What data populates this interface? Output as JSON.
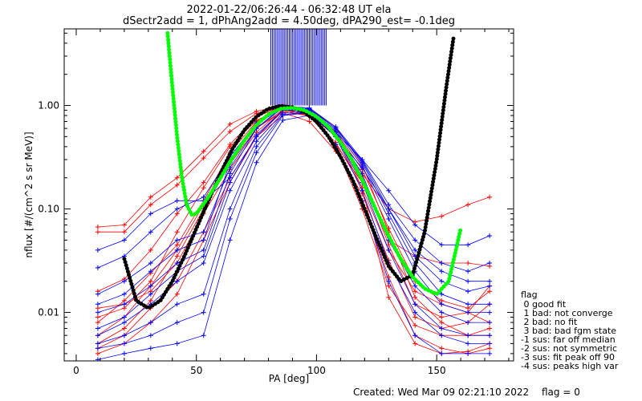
{
  "header": {
    "title_line1": "2022-01-22/06:26:44 - 06:32:48 UT ela",
    "title_line2": "dSectr2add = 1, dPhAng2add = 4.50deg, dPA290_est=  -0.1deg"
  },
  "footer": {
    "created": "Created: Wed Mar 09 02:21:10 2022",
    "flag": "flag = 0"
  },
  "legend": {
    "title": "flag",
    "items": [
      " 0 good fit",
      " 1 bad: not converge",
      " 2 bad: no fit",
      " 3 bad: bad fgm state",
      "-1 sus: far off median",
      "-2 sus: not symmetric",
      "-3 sus: fit peak off 90",
      "-4 sus: peaks high var"
    ]
  },
  "colors": {
    "red_spectra": "#ff0000",
    "blue_spectra": "#0000ff",
    "green_fit": "#00ff00",
    "black_fit": "#000000",
    "axes": "#000000"
  },
  "chart_data": {
    "type": "line",
    "xlabel": "PA [deg]",
    "ylabel": "nflux [#/(cm^2 s sr MeV)]",
    "xlim": [
      -5,
      182
    ],
    "ylim": [
      0.0034,
      5.5
    ],
    "yscale": "log",
    "x_ticks": [
      0,
      50,
      100,
      150
    ],
    "y_ticks": [
      {
        "value": 0.01,
        "label": "0.01"
      },
      {
        "value": 0.1,
        "label": "0.10"
      },
      {
        "value": 1.0,
        "label": "1.00"
      }
    ],
    "grid": false,
    "series": [
      {
        "color": "#ff0000",
        "style": "lines+plus",
        "pa": [
          9,
          20,
          31,
          42,
          53,
          64,
          75,
          86,
          97,
          108,
          119,
          130,
          141,
          152,
          163,
          172
        ],
        "curves": [
          [
            0.067,
            0.07,
            0.13,
            0.2,
            0.36,
            0.66,
            0.88,
            1.0,
            0.82,
            0.5,
            0.22,
            0.1,
            0.075,
            0.085,
            0.11,
            0.13
          ],
          [
            0.06,
            0.06,
            0.11,
            0.17,
            0.31,
            0.56,
            0.84,
            0.96,
            0.78,
            0.42,
            0.18,
            0.05,
            0.035,
            0.03,
            0.03,
            0.028
          ],
          [
            0.016,
            0.021,
            0.04,
            0.09,
            0.18,
            0.42,
            0.78,
            0.98,
            0.86,
            0.5,
            0.21,
            0.045,
            0.012,
            0.009,
            0.01,
            0.018
          ],
          [
            0.006,
            0.009,
            0.018,
            0.04,
            0.11,
            0.3,
            0.62,
            0.85,
            0.7,
            0.36,
            0.14,
            0.032,
            0.009,
            0.007,
            0.008,
            0.012
          ],
          [
            0.011,
            0.012,
            0.016,
            0.03,
            0.09,
            0.24,
            0.55,
            0.92,
            0.93,
            0.62,
            0.27,
            0.06,
            0.014,
            0.008,
            0.006,
            0.006
          ],
          [
            0.004,
            0.005,
            0.008,
            0.015,
            0.05,
            0.18,
            0.5,
            0.88,
            0.79,
            0.42,
            0.12,
            0.022,
            0.006,
            0.0045,
            0.004,
            0.0045
          ],
          [
            0.008,
            0.013,
            0.024,
            0.045,
            0.12,
            0.35,
            0.7,
            0.97,
            0.9,
            0.56,
            0.24,
            0.065,
            0.02,
            0.013,
            0.011,
            0.016
          ],
          [
            0.0045,
            0.006,
            0.011,
            0.02,
            0.06,
            0.2,
            0.5,
            0.8,
            0.86,
            0.52,
            0.16,
            0.014,
            0.005,
            0.004,
            0.0042,
            0.005
          ],
          [
            0.009,
            0.011,
            0.02,
            0.06,
            0.16,
            0.4,
            0.72,
            0.94,
            0.78,
            0.44,
            0.16,
            0.04,
            0.016,
            0.012,
            0.01,
            0.008
          ],
          [
            0.005,
            0.007,
            0.013,
            0.035,
            0.1,
            0.27,
            0.6,
            0.9,
            0.82,
            0.4,
            0.1,
            0.018,
            0.0075,
            0.006,
            0.006,
            0.007
          ]
        ]
      },
      {
        "color": "#0000ff",
        "style": "lines+plus",
        "pa": [
          9,
          20,
          31,
          42,
          53,
          64,
          75,
          86,
          97,
          108,
          119,
          130,
          141,
          152,
          163,
          172
        ],
        "curves": [
          [
            0.04,
            0.05,
            0.09,
            0.12,
            0.12,
            0.2,
            0.5,
            0.9,
            0.9,
            0.55,
            0.3,
            0.15,
            0.07,
            0.045,
            0.045,
            0.055
          ],
          [
            0.027,
            0.035,
            0.06,
            0.1,
            0.13,
            0.32,
            0.68,
            0.95,
            0.85,
            0.5,
            0.25,
            0.1,
            0.04,
            0.025,
            0.02,
            0.02
          ],
          [
            0.015,
            0.02,
            0.03,
            0.05,
            0.06,
            0.25,
            0.6,
            0.95,
            0.92,
            0.6,
            0.28,
            0.09,
            0.03,
            0.015,
            0.012,
            0.012
          ],
          [
            0.006,
            0.008,
            0.012,
            0.02,
            0.03,
            0.15,
            0.45,
            0.85,
            0.88,
            0.55,
            0.22,
            0.05,
            0.018,
            0.01,
            0.008,
            0.008
          ],
          [
            0.0045,
            0.005,
            0.006,
            0.008,
            0.01,
            0.08,
            0.35,
            0.8,
            0.85,
            0.5,
            0.15,
            0.03,
            0.01,
            0.006,
            0.005,
            0.005
          ],
          [
            0.0035,
            0.004,
            0.0045,
            0.005,
            0.006,
            0.05,
            0.28,
            0.72,
            0.8,
            0.42,
            0.12,
            0.02,
            0.006,
            0.004,
            0.004,
            0.004
          ],
          [
            0.01,
            0.012,
            0.018,
            0.03,
            0.04,
            0.22,
            0.6,
            0.98,
            0.95,
            0.62,
            0.3,
            0.11,
            0.05,
            0.03,
            0.025,
            0.03
          ],
          [
            0.007,
            0.009,
            0.015,
            0.025,
            0.035,
            0.18,
            0.52,
            0.9,
            0.9,
            0.58,
            0.26,
            0.08,
            0.025,
            0.012,
            0.01,
            0.01
          ],
          [
            0.005,
            0.006,
            0.008,
            0.012,
            0.015,
            0.1,
            0.4,
            0.82,
            0.86,
            0.5,
            0.18,
            0.04,
            0.012,
            0.007,
            0.006,
            0.006
          ],
          [
            0.012,
            0.015,
            0.025,
            0.04,
            0.05,
            0.28,
            0.65,
            0.97,
            0.93,
            0.6,
            0.29,
            0.1,
            0.035,
            0.02,
            0.016,
            0.018
          ]
        ]
      },
      {
        "color": "#000000",
        "style": "thick-dots",
        "x": [
          20,
          25,
          30,
          35,
          40,
          45,
          50,
          55,
          60,
          65,
          70,
          75,
          80,
          85,
          90,
          95,
          100,
          105,
          110,
          115,
          120,
          125,
          130,
          135,
          140,
          145,
          150,
          154,
          157
        ],
        "y": [
          0.033,
          0.013,
          0.011,
          0.013,
          0.02,
          0.035,
          0.065,
          0.12,
          0.22,
          0.38,
          0.58,
          0.78,
          0.93,
          0.99,
          0.96,
          0.86,
          0.7,
          0.5,
          0.32,
          0.19,
          0.1,
          0.052,
          0.028,
          0.02,
          0.023,
          0.06,
          0.3,
          1.5,
          4.5
        ]
      },
      {
        "color": "#00ff00",
        "style": "thick-dots",
        "x": [
          38,
          40,
          42,
          44,
          46,
          48,
          50,
          55,
          60,
          65,
          70,
          75,
          80,
          85,
          90,
          95,
          100,
          105,
          110,
          115,
          120,
          125,
          130,
          135,
          140,
          145,
          150,
          155,
          158,
          160
        ],
        "y": [
          5.0,
          1.5,
          0.5,
          0.2,
          0.11,
          0.088,
          0.09,
          0.13,
          0.2,
          0.31,
          0.46,
          0.65,
          0.82,
          0.93,
          0.95,
          0.9,
          0.78,
          0.62,
          0.44,
          0.29,
          0.17,
          0.095,
          0.055,
          0.033,
          0.022,
          0.017,
          0.015,
          0.02,
          0.04,
          0.065
        ]
      }
    ],
    "vertical_bars": {
      "color": "#0000ff",
      "x_from": 81,
      "x_to": 104,
      "count": 34,
      "y_low": 1.0,
      "y_high": 5.5
    }
  }
}
